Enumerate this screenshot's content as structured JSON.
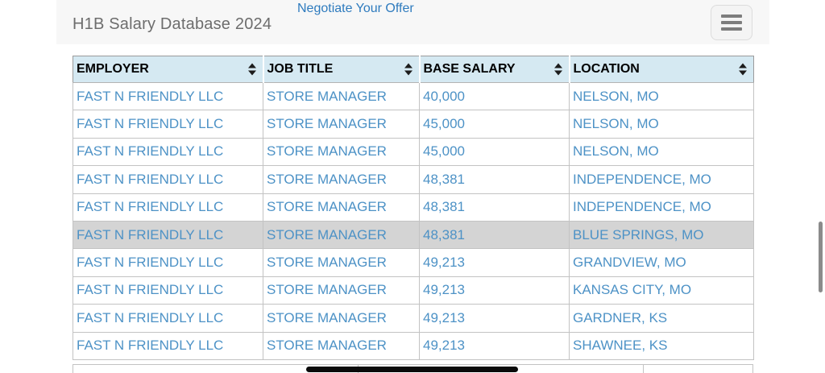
{
  "header": {
    "title": "H1B Salary Database 2024",
    "link": "Negotiate Your Offer"
  },
  "table": {
    "columns": [
      {
        "id": "employer",
        "label": "EMPLOYER"
      },
      {
        "id": "job-title",
        "label": "JOB TITLE"
      },
      {
        "id": "base-salary",
        "label": "BASE SALARY"
      },
      {
        "id": "location",
        "label": "LOCATION"
      }
    ],
    "rows": [
      {
        "employer": "FAST N FRIENDLY LLC",
        "job_title": "STORE MANAGER",
        "base_salary": "40,000",
        "location": "NELSON, MO",
        "highlighted": false
      },
      {
        "employer": "FAST N FRIENDLY LLC",
        "job_title": "STORE MANAGER",
        "base_salary": "45,000",
        "location": "NELSON, MO",
        "highlighted": false
      },
      {
        "employer": "FAST N FRIENDLY LLC",
        "job_title": "STORE MANAGER",
        "base_salary": "45,000",
        "location": "NELSON, MO",
        "highlighted": false
      },
      {
        "employer": "FAST N FRIENDLY LLC",
        "job_title": "STORE MANAGER",
        "base_salary": "48,381",
        "location": "INDEPENDENCE, MO",
        "highlighted": false
      },
      {
        "employer": "FAST N FRIENDLY LLC",
        "job_title": "STORE MANAGER",
        "base_salary": "48,381",
        "location": "INDEPENDENCE, MO",
        "highlighted": false
      },
      {
        "employer": "FAST N FRIENDLY LLC",
        "job_title": "STORE MANAGER",
        "base_salary": "48,381",
        "location": "BLUE SPRINGS, MO",
        "highlighted": true
      },
      {
        "employer": "FAST N FRIENDLY LLC",
        "job_title": "STORE MANAGER",
        "base_salary": "49,213",
        "location": "GRANDVIEW, MO",
        "highlighted": false
      },
      {
        "employer": "FAST N FRIENDLY LLC",
        "job_title": "STORE MANAGER",
        "base_salary": "49,213",
        "location": "KANSAS CITY, MO",
        "highlighted": false
      },
      {
        "employer": "FAST N FRIENDLY LLC",
        "job_title": "STORE MANAGER",
        "base_salary": "49,213",
        "location": "GARDNER, KS",
        "highlighted": false
      },
      {
        "employer": "FAST N FRIENDLY LLC",
        "job_title": "STORE MANAGER",
        "base_salary": "49,213",
        "location": "SHAWNEE, KS",
        "highlighted": false
      }
    ]
  },
  "colors": {
    "band_bg": "#f7f7f7",
    "title_color": "#6d6d6d",
    "link_color": "#2e7bbe",
    "header_bg": "#d5e9f2",
    "row_text": "#4d92c6",
    "highlight_bg": "#d4d4d4",
    "border_outer": "#9b9b9b",
    "border_inner": "#c3c3c3"
  }
}
